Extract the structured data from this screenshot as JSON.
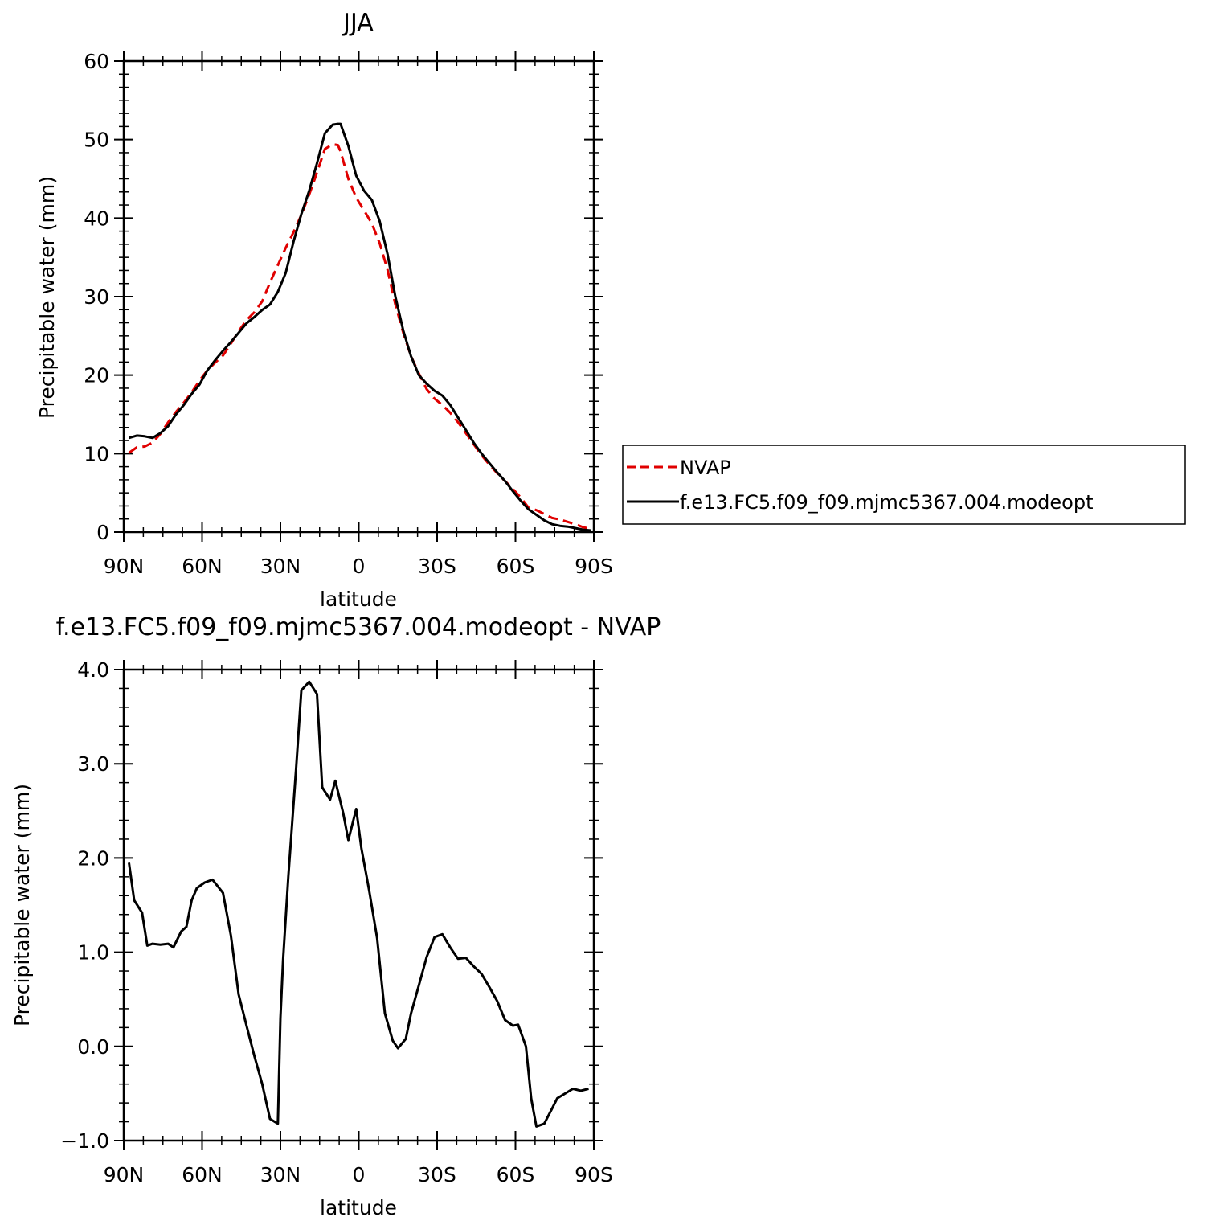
{
  "chart_data": [
    {
      "type": "line",
      "title": "JJA",
      "xlabel": "latitude",
      "ylabel": "Precipitable water (mm)",
      "xlim": [
        90,
        -90
      ],
      "ylim": [
        0,
        60
      ],
      "x_ticks": [
        90,
        60,
        30,
        0,
        -30,
        -60,
        -90
      ],
      "x_tick_labels": [
        "90N",
        "60N",
        "30N",
        "0",
        "30S",
        "60S",
        "90S"
      ],
      "y_ticks": [
        0,
        10,
        20,
        30,
        40,
        50,
        60
      ],
      "y_tick_labels": [
        "0",
        "10",
        "20",
        "30",
        "40",
        "50",
        "60"
      ],
      "legend_position": "right, outside",
      "series": [
        {
          "name": "NVAP",
          "color": "#e00000",
          "dash": "dashed",
          "x": [
            88,
            85,
            82,
            79,
            76,
            73,
            70,
            67,
            64,
            61,
            58,
            55,
            52,
            49,
            46,
            43,
            40,
            37,
            34,
            31,
            28,
            25,
            22,
            19,
            16,
            13,
            10,
            8,
            7,
            4,
            1,
            -2,
            -5,
            -8,
            -11,
            -14,
            -17,
            -20,
            -23,
            -26,
            -29,
            -32,
            -35,
            -38,
            -41,
            -44,
            -47,
            -50,
            -53,
            -56,
            -59,
            -62,
            -65,
            -68,
            -71,
            -74,
            -77,
            -80,
            -83,
            -86,
            -89
          ],
          "y": [
            10.1,
            10.8,
            10.9,
            11.4,
            12.5,
            14.0,
            15.3,
            16.5,
            17.8,
            19.3,
            20.6,
            21.6,
            22.5,
            24.0,
            25.6,
            27.0,
            28.0,
            29.4,
            31.8,
            34.0,
            36.2,
            38.2,
            40.4,
            43.0,
            45.8,
            48.8,
            49.4,
            49.3,
            48.5,
            45.0,
            42.6,
            41.0,
            39.3,
            36.8,
            33.4,
            29.0,
            25.4,
            22.4,
            20.2,
            18.2,
            17.0,
            16.2,
            15.2,
            14.0,
            12.6,
            11.2,
            9.8,
            8.6,
            7.5,
            6.5,
            5.5,
            4.4,
            3.1,
            2.8,
            2.3,
            1.8,
            1.6,
            1.3,
            1.0,
            0.6,
            0.4
          ]
        },
        {
          "name": "f.e13.FC5.f09_f09.mjmc5367.004.modeopt",
          "color": "#000000",
          "dash": "solid",
          "x": [
            88,
            85,
            82,
            79,
            76,
            73,
            70,
            67,
            64,
            61,
            58,
            55,
            52,
            49,
            46,
            43,
            40,
            37,
            34,
            31,
            28,
            25,
            22,
            19,
            16,
            13,
            10,
            8,
            7,
            4,
            1,
            -2,
            -5,
            -8,
            -11,
            -14,
            -17,
            -20,
            -23,
            -26,
            -29,
            -32,
            -35,
            -38,
            -41,
            -44,
            -47,
            -50,
            -53,
            -56,
            -59,
            -62,
            -65,
            -68,
            -71,
            -74,
            -77,
            -80,
            -83,
            -86,
            -89
          ],
          "y": [
            12.0,
            12.3,
            12.2,
            12.0,
            12.6,
            13.5,
            15.0,
            16.2,
            17.6,
            18.8,
            20.6,
            21.9,
            23.1,
            24.2,
            25.4,
            26.6,
            27.4,
            28.3,
            29.0,
            30.6,
            33.0,
            37.0,
            40.5,
            43.5,
            47.0,
            50.8,
            51.9,
            52.0,
            52.0,
            49.2,
            45.4,
            43.5,
            42.3,
            39.6,
            35.4,
            30.0,
            25.7,
            22.4,
            20.0,
            18.9,
            18.0,
            17.4,
            16.2,
            14.6,
            13.0,
            11.4,
            10.0,
            8.8,
            7.6,
            6.5,
            5.2,
            4.0,
            2.9,
            2.2,
            1.5,
            1.0,
            0.8,
            0.7,
            0.5,
            0.3,
            0.2
          ]
        }
      ]
    },
    {
      "type": "line",
      "title": "f.e13.FC5.f09_f09.mjmc5367.004.modeopt - NVAP",
      "xlabel": "latitude",
      "ylabel": "Precipitable water (mm)",
      "xlim": [
        90,
        -90
      ],
      "ylim": [
        -1.0,
        4.0
      ],
      "x_ticks": [
        90,
        60,
        30,
        0,
        -30,
        -60,
        -90
      ],
      "x_tick_labels": [
        "90N",
        "60N",
        "30N",
        "0",
        "30S",
        "60S",
        "90S"
      ],
      "y_ticks": [
        -1.0,
        0.0,
        1.0,
        2.0,
        3.0,
        4.0
      ],
      "y_tick_labels": [
        "−1.0",
        "0.0",
        "1.0",
        "2.0",
        "3.0",
        "4.0"
      ],
      "series": [
        {
          "color": "#000000",
          "dash": "solid",
          "x": [
            88,
            86,
            83,
            81,
            79,
            76,
            73,
            71,
            68,
            66,
            64,
            62,
            59,
            56,
            52,
            49,
            46,
            43,
            40,
            37,
            34,
            31,
            30,
            29,
            27,
            24,
            22,
            19,
            16,
            14,
            11,
            9,
            6,
            4,
            1,
            -1,
            -3,
            -4,
            -7,
            -10,
            -13,
            -15,
            -18,
            -20,
            -23,
            -26,
            -29,
            -32,
            -35,
            -38,
            -41,
            -44,
            -47,
            -50,
            -53,
            -56,
            -59,
            -61,
            -64,
            -66,
            -68,
            -71,
            -74,
            -76,
            -79,
            -82,
            -85,
            -88
          ],
          "y": [
            1.95,
            1.55,
            1.42,
            1.07,
            1.09,
            1.08,
            1.09,
            1.05,
            1.22,
            1.27,
            1.55,
            1.68,
            1.74,
            1.77,
            1.63,
            1.18,
            0.55,
            0.22,
            -0.1,
            -0.4,
            -0.77,
            -0.82,
            0.3,
            0.92,
            1.8,
            2.95,
            3.78,
            3.87,
            3.74,
            2.75,
            2.62,
            2.82,
            2.48,
            2.19,
            2.52,
            2.1,
            1.8,
            1.65,
            1.15,
            0.35,
            0.06,
            -0.02,
            0.08,
            0.35,
            0.65,
            0.95,
            1.16,
            1.19,
            1.05,
            0.93,
            0.94,
            0.85,
            0.77,
            0.63,
            0.48,
            0.28,
            0.22,
            0.23,
            0.0,
            -0.55,
            -0.85,
            -0.82,
            -0.66,
            -0.55,
            -0.5,
            -0.45,
            -0.47,
            -0.45
          ]
        }
      ]
    }
  ]
}
